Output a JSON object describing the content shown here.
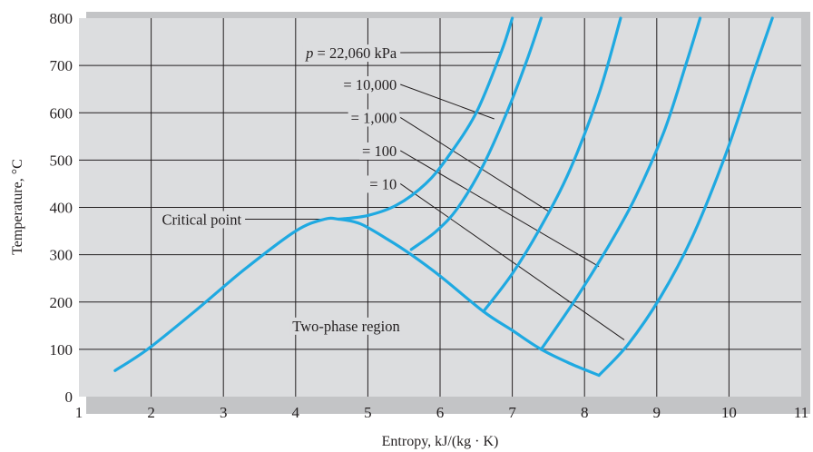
{
  "chart_data": {
    "type": "line",
    "title": "",
    "xlabel": "Entropy, kJ/(kg · K)",
    "ylabel": "Temperature, °C",
    "xlim": [
      1,
      11
    ],
    "ylim": [
      0,
      800
    ],
    "xticks": [
      1,
      2,
      3,
      4,
      5,
      6,
      7,
      8,
      9,
      10,
      11
    ],
    "yticks": [
      0,
      100,
      200,
      300,
      400,
      500,
      600,
      700,
      800
    ],
    "grid": true,
    "colors": {
      "plot_bg": "#dcdddf",
      "frame": "#c3c4c6",
      "grid": "#231f20",
      "curve": "#1fa9e1",
      "text": "#231f20"
    },
    "series": [
      {
        "name": "saturation dome",
        "x": [
          1.5,
          1.95,
          2.6,
          3.3,
          4.0,
          4.4,
          4.6,
          4.9,
          5.3,
          5.6,
          6.0,
          6.6,
          7.0,
          7.4,
          7.8,
          8.2
        ],
        "y": [
          55,
          100,
          180,
          270,
          350,
          375,
          375,
          365,
          330,
          300,
          255,
          180,
          140,
          100,
          70,
          45
        ]
      },
      {
        "name": "p = 22,060 kPa",
        "x": [
          4.6,
          5.0,
          5.4,
          5.8,
          6.1,
          6.5,
          6.85,
          7.0
        ],
        "y": [
          375,
          383,
          405,
          450,
          505,
          600,
          730,
          800
        ]
      },
      {
        "name": "10,000 kPa",
        "x": [
          5.6,
          5.95,
          6.25,
          6.6,
          6.95,
          7.2,
          7.4
        ],
        "y": [
          311,
          350,
          400,
          490,
          610,
          710,
          800
        ]
      },
      {
        "name": "1,000 kPa",
        "x": [
          6.6,
          7.0,
          7.4,
          7.8,
          8.2,
          8.5
        ],
        "y": [
          180,
          260,
          360,
          480,
          640,
          800
        ]
      },
      {
        "name": "100 kPa",
        "x": [
          7.4,
          7.85,
          8.3,
          8.7,
          9.1,
          9.4,
          9.6
        ],
        "y": [
          100,
          200,
          310,
          420,
          560,
          700,
          800
        ]
      },
      {
        "name": "10 kPa",
        "x": [
          8.2,
          8.6,
          9.05,
          9.5,
          9.95,
          10.35,
          10.6
        ],
        "y": [
          45,
          110,
          210,
          340,
          510,
          690,
          800
        ]
      }
    ],
    "annotations": [
      {
        "text_parts": [
          "p",
          " = 22,060 kPa"
        ],
        "anchor": [
          5.45,
          727
        ],
        "target": [
          6.85,
          728
        ]
      },
      {
        "text": "= 10,000",
        "anchor": [
          5.45,
          660
        ],
        "target": [
          6.75,
          587
        ]
      },
      {
        "text": "= 1,000",
        "anchor": [
          5.45,
          590
        ],
        "target": [
          7.5,
          392
        ]
      },
      {
        "text": "= 100",
        "anchor": [
          5.45,
          520
        ],
        "target": [
          8.2,
          275
        ]
      },
      {
        "text": "= 10",
        "anchor": [
          5.45,
          450
        ],
        "target": [
          8.55,
          120
        ]
      },
      {
        "text": "Critical point",
        "anchor": [
          3.3,
          375
        ],
        "target": [
          4.55,
          375
        ]
      },
      {
        "text": "Two-phase region",
        "position": [
          4.7,
          150
        ]
      }
    ]
  }
}
